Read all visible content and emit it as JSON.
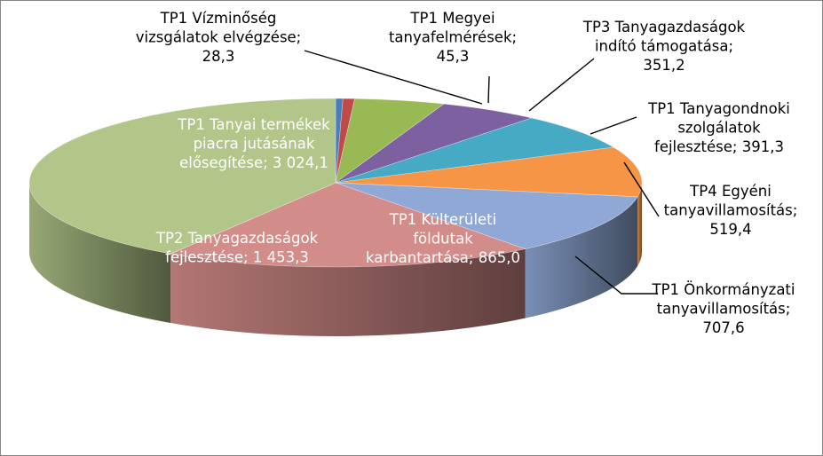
{
  "chart_data": {
    "type": "pie",
    "three_d": true,
    "start_angle_deg": 90,
    "direction": "clockwise",
    "slices": [
      {
        "label": "TP1 Vízminőség vizsgálatok elvégzése",
        "value": 28.3,
        "display_value": "28,3",
        "color": "#4a7ebb"
      },
      {
        "label": "TP1 Megyei tanyafelmérések",
        "value": 45.3,
        "display_value": "45,3",
        "color": "#be4b48"
      },
      {
        "label": "TP3 Tanyagazdaságok indító támogatása",
        "value": 351.2,
        "display_value": "351,2",
        "color": "#98b954"
      },
      {
        "label": "TP1 Tanyagondnoki szolgálatok fejlesztése",
        "value": 391.3,
        "display_value": "391,3",
        "color": "#7d60a0"
      },
      {
        "label": "TP4 Egyéni tanyavillamosítás",
        "value": 519.4,
        "display_value": "519,4",
        "color": "#46aac5"
      },
      {
        "label": "TP1 Önkormányzati tanyavillamosítás",
        "value": 707.6,
        "display_value": "707,6",
        "color": "#f69545"
      },
      {
        "label": "TP1 Külterületi földutak karbantartása",
        "value": 865.0,
        "display_value": "865,0",
        "color": "#8fa8d6"
      },
      {
        "label": "TP2 Tanyagazdaságok fejlesztése",
        "value": 1453.3,
        "display_value": "1 453,3",
        "color": "#d28c89"
      },
      {
        "label": "TP1 Tanyai termékek piacra jutásának elősegítése",
        "value": 3024.1,
        "display_value": "3 024,1",
        "color": "#b2c68a"
      }
    ],
    "data_labels": [
      {
        "lines": [
          "TP1 Vízminőség",
          "vizsgálatok elvégzése;",
          "28,3"
        ],
        "placement": "outside"
      },
      {
        "lines": [
          "TP1 Megyei",
          "tanyafelmérések;",
          "45,3"
        ],
        "placement": "outside"
      },
      {
        "lines": [
          "TP3 Tanyagazdaságok",
          "indító támogatása;",
          "351,2"
        ],
        "placement": "outside"
      },
      {
        "lines": [
          "TP1 Tanyagondnoki",
          "szolgálatok",
          "fejlesztése;  391,3"
        ],
        "placement": "outside"
      },
      {
        "lines": [
          "TP4 Egyéni",
          "tanyavillamosítás;",
          "519,4"
        ],
        "placement": "outside"
      },
      {
        "lines": [
          "TP1 Önkormányzati",
          "tanyavillamosítás;",
          "707,6"
        ],
        "placement": "outside"
      },
      {
        "lines": [
          "TP1 Külterületi",
          "földutak",
          "karbantartása; 865,0"
        ],
        "placement": "inside"
      },
      {
        "lines": [
          "TP2 Tanyagazdaságok",
          "fejlesztése;  1 453,3"
        ],
        "placement": "inside"
      },
      {
        "lines": [
          "TP1 Tanyai termékek",
          "piacra jutásának",
          "elősegítése; 3 024,1"
        ],
        "placement": "inside"
      }
    ]
  }
}
